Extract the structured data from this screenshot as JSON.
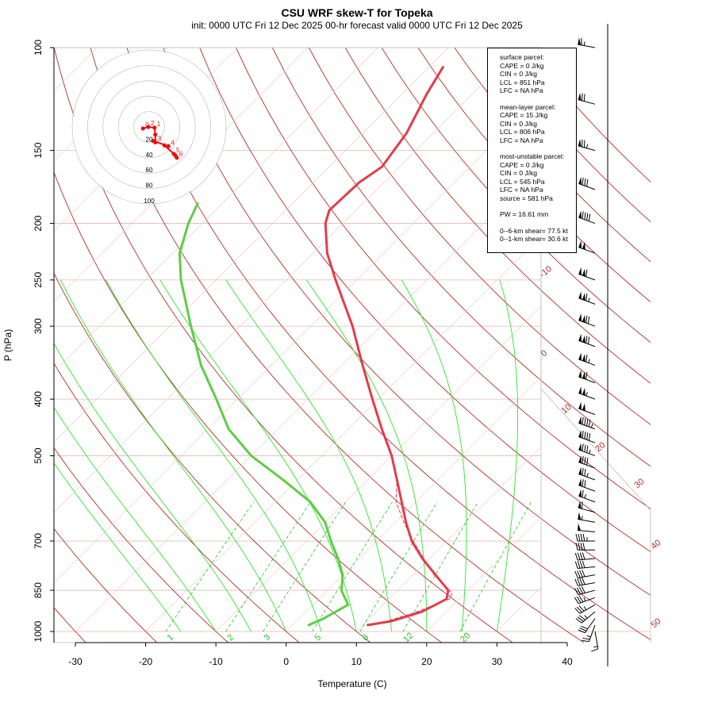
{
  "title": "CSU WRF skew-T for Topeka",
  "subtitle": "init: 0000 UTC Fri 12 Dec 2025     00-hr forecast valid 0000 UTC Fri 12 Dec 2025",
  "axes": {
    "xlabel": "Temperature (C)",
    "ylabel": "P (hPa)"
  },
  "info_box": {
    "surface_header": "surface parcel:",
    "surface_lines": [
      "CAPE = 0 J/kg",
      "CIN = 0 J/kg",
      "LCL = 851 hPa",
      "LFC = NA hPa"
    ],
    "meanlayer_header": "mean-layer parcel:",
    "meanlayer_lines": [
      "CAPE = 15 J/kg",
      "CIN = 0 J/kg",
      "LCL = 806 hPa",
      "LFC = NA hPa"
    ],
    "mostunstable_header": "most-unstable parcel:",
    "mostunstable_lines": [
      "CAPE = 0 J/kg",
      "CIN = 0 J/kg",
      "LCL = 545 hPa",
      "LFC = NA hPa",
      "source = 581 hPa"
    ],
    "pw_line": "PW =  16.61 mm",
    "shear_6km": "0--6-km shear= 77.5 kt",
    "shear_1km": "0--1-km shear= 30.6 kt"
  },
  "chart_data": {
    "type": "skew-t",
    "x_ticks": [
      -30,
      -20,
      -10,
      0,
      10,
      20,
      30,
      40
    ],
    "p_ticks": [
      100,
      150,
      200,
      250,
      300,
      400,
      500,
      700,
      850,
      1000
    ],
    "xlim": [
      -33,
      44
    ],
    "plim": [
      1000,
      100
    ],
    "dry_adiabat_labels": [
      "-10",
      "0",
      "10",
      "20",
      "30",
      "40",
      "50"
    ],
    "mixing_ratio_labels": [
      "1",
      "2",
      "3",
      "5",
      "8",
      "12",
      "20"
    ],
    "hodograph_ring_labels": [
      "20",
      "40",
      "60",
      "80",
      "100"
    ],
    "hodograph_point_labels": [
      "0",
      "1",
      "2",
      "3",
      "4",
      "5",
      "6"
    ],
    "temperature_profile": [
      {
        "p": 975,
        "t": 10.7
      },
      {
        "p": 960,
        "t": 13.5
      },
      {
        "p": 925,
        "t": 16.5
      },
      {
        "p": 880,
        "t": 18.2
      },
      {
        "p": 850,
        "t": 17.2
      },
      {
        "p": 800,
        "t": 13.2
      },
      {
        "p": 750,
        "t": 9.0
      },
      {
        "p": 700,
        "t": 5.0
      },
      {
        "p": 650,
        "t": 1.5
      },
      {
        "p": 600,
        "t": -2.0
      },
      {
        "p": 550,
        "t": -5.8
      },
      {
        "p": 500,
        "t": -10.0
      },
      {
        "p": 450,
        "t": -15.2
      },
      {
        "p": 400,
        "t": -20.8
      },
      {
        "p": 350,
        "t": -27.0
      },
      {
        "p": 300,
        "t": -34.0
      },
      {
        "p": 250,
        "t": -43.0
      },
      {
        "p": 225,
        "t": -48.0
      },
      {
        "p": 200,
        "t": -52.5
      },
      {
        "p": 190,
        "t": -53.8
      },
      {
        "p": 170,
        "t": -53.5
      },
      {
        "p": 160,
        "t": -52.5
      },
      {
        "p": 140,
        "t": -53.8
      },
      {
        "p": 120,
        "t": -56.5
      },
      {
        "p": 108,
        "t": -58.0
      }
    ],
    "dewpoint_profile": [
      {
        "p": 975,
        "t": 2.3
      },
      {
        "p": 950,
        "t": 3.5
      },
      {
        "p": 900,
        "t": 5.0
      },
      {
        "p": 850,
        "t": 2.0
      },
      {
        "p": 800,
        "t": 0.0
      },
      {
        "p": 750,
        "t": -3.0
      },
      {
        "p": 700,
        "t": -6.5
      },
      {
        "p": 650,
        "t": -10.0
      },
      {
        "p": 600,
        "t": -15.0
      },
      {
        "p": 550,
        "t": -22.0
      },
      {
        "p": 500,
        "t": -30.0
      },
      {
        "p": 450,
        "t": -37.0
      },
      {
        "p": 400,
        "t": -43.0
      },
      {
        "p": 350,
        "t": -50.0
      },
      {
        "p": 300,
        "t": -57.0
      },
      {
        "p": 250,
        "t": -65.0
      },
      {
        "p": 225,
        "t": -69.0
      },
      {
        "p": 200,
        "t": -72.0
      },
      {
        "p": 185,
        "t": -73.5
      }
    ],
    "parcel_profile": [
      {
        "p": 975,
        "t": 11.5
      },
      {
        "p": 930,
        "t": 15.5
      },
      {
        "p": 880,
        "t": 18.6
      },
      {
        "p": 860,
        "t": 18.2
      },
      {
        "p": 800,
        "t": 13.0
      },
      {
        "p": 750,
        "t": 9.2
      },
      {
        "p": 700,
        "t": 5.2
      },
      {
        "p": 650,
        "t": 1.2
      },
      {
        "p": 600,
        "t": -2.8
      },
      {
        "p": 560,
        "t": -5.2
      }
    ],
    "hodograph": [
      {
        "label": "0",
        "u": -8,
        "v": -2
      },
      {
        "label": "1",
        "u": 7,
        "v": -1
      },
      {
        "label": "2",
        "u": -1,
        "v": 0
      },
      {
        "label": "3",
        "u": 8,
        "v": -20
      },
      {
        "label": "4",
        "u": 25,
        "v": -25
      },
      {
        "label": "5",
        "u": 32,
        "v": -35
      },
      {
        "label": "6",
        "u": 36,
        "v": -40
      }
    ],
    "hodograph_extra": [
      {
        "u": 8,
        "v": -10
      },
      {
        "u": 5,
        "v": -18
      },
      {
        "u": 20,
        "v": -24
      },
      {
        "u": 34,
        "v": -37
      }
    ],
    "wind_barbs": [
      {
        "p": 1000,
        "spd": 15,
        "dir": 170
      },
      {
        "p": 975,
        "spd": 25,
        "dir": 200
      },
      {
        "p": 950,
        "spd": 30,
        "dir": 215
      },
      {
        "p": 925,
        "spd": 35,
        "dir": 230
      },
      {
        "p": 900,
        "spd": 35,
        "dir": 240
      },
      {
        "p": 875,
        "spd": 35,
        "dir": 250
      },
      {
        "p": 850,
        "spd": 40,
        "dir": 255
      },
      {
        "p": 825,
        "spd": 40,
        "dir": 260
      },
      {
        "p": 800,
        "spd": 40,
        "dir": 260
      },
      {
        "p": 775,
        "spd": 40,
        "dir": 265
      },
      {
        "p": 750,
        "spd": 40,
        "dir": 265
      },
      {
        "p": 725,
        "spd": 40,
        "dir": 270
      },
      {
        "p": 700,
        "spd": 45,
        "dir": 270
      },
      {
        "p": 675,
        "spd": 50,
        "dir": 275
      },
      {
        "p": 650,
        "spd": 55,
        "dir": 280
      },
      {
        "p": 625,
        "spd": 60,
        "dir": 285
      },
      {
        "p": 600,
        "spd": 65,
        "dir": 290
      },
      {
        "p": 575,
        "spd": 70,
        "dir": 290
      },
      {
        "p": 550,
        "spd": 75,
        "dir": 290
      },
      {
        "p": 525,
        "spd": 80,
        "dir": 290
      },
      {
        "p": 500,
        "spd": 85,
        "dir": 290
      },
      {
        "p": 475,
        "spd": 90,
        "dir": 290
      },
      {
        "p": 450,
        "spd": 95,
        "dir": 290
      },
      {
        "p": 425,
        "spd": 100,
        "dir": 290
      },
      {
        "p": 400,
        "spd": 105,
        "dir": 290
      },
      {
        "p": 375,
        "spd": 110,
        "dir": 290
      },
      {
        "p": 350,
        "spd": 115,
        "dir": 290
      },
      {
        "p": 325,
        "spd": 120,
        "dir": 290
      },
      {
        "p": 300,
        "spd": 120,
        "dir": 290
      },
      {
        "p": 275,
        "spd": 115,
        "dir": 290
      },
      {
        "p": 250,
        "spd": 110,
        "dir": 290
      },
      {
        "p": 225,
        "spd": 100,
        "dir": 290
      },
      {
        "p": 200,
        "spd": 90,
        "dir": 290
      },
      {
        "p": 175,
        "spd": 80,
        "dir": 290
      },
      {
        "p": 150,
        "spd": 75,
        "dir": 285
      },
      {
        "p": 125,
        "spd": 70,
        "dir": 285
      },
      {
        "p": 100,
        "spd": 65,
        "dir": 280
      }
    ],
    "colors": {
      "temperature": "#e23d4b",
      "dewpoint": "#5fcd46",
      "adiabat": "#b0302a",
      "isotherm": "#d9c8c8",
      "mixing_ratio": "#25c025",
      "moist_adiabat": "#2ee52e",
      "hodo_line": "#e81010",
      "ring": "#c8c8c8"
    }
  }
}
